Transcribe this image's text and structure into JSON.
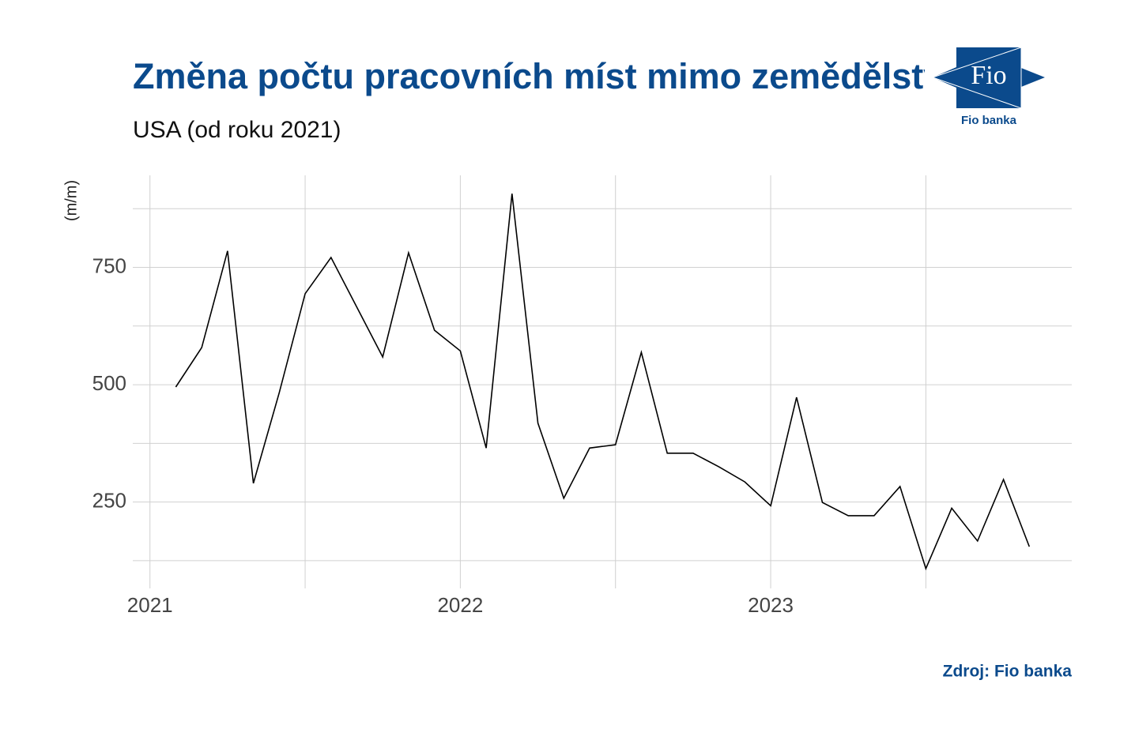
{
  "chart_data": {
    "type": "line",
    "title": "Změna počtu pracovních míst mimo zemědělství",
    "subtitle": "USA (od roku 2021)",
    "y_label": "(m/m)",
    "source": "Zdroj: Fio banka",
    "logo": {
      "mark": "Fio",
      "caption": "Fio banka"
    },
    "x": [
      "2021-02",
      "2021-03",
      "2021-04",
      "2021-05",
      "2021-06",
      "2021-07",
      "2021-08",
      "2021-09",
      "2021-10",
      "2021-11",
      "2021-12",
      "2022-01",
      "2022-02",
      "2022-03",
      "2022-04",
      "2022-05",
      "2022-06",
      "2022-07",
      "2022-08",
      "2022-09",
      "2022-10",
      "2022-11",
      "2022-12",
      "2023-01",
      "2023-02",
      "2023-03",
      "2023-04",
      "2023-05",
      "2023-06",
      "2023-07",
      "2023-08",
      "2023-09",
      "2023-10",
      "2023-11"
    ],
    "values": [
      495,
      579,
      785,
      290,
      483,
      694,
      771,
      665,
      559,
      781,
      616,
      572,
      365,
      907,
      418,
      258,
      365,
      372,
      569,
      354,
      354,
      325,
      293,
      242,
      473,
      249,
      221,
      221,
      283,
      108,
      237,
      167,
      298,
      155
    ],
    "color": "#000000",
    "xlim": [
      "2020-12",
      "2023-12"
    ],
    "xticks": [
      {
        "value": "2021-01",
        "label": "2021"
      },
      {
        "value": "2022-01",
        "label": "2022"
      },
      {
        "value": "2023-01",
        "label": "2023"
      }
    ],
    "x_minor_ticks": [
      "2021-07",
      "2022-07",
      "2023-07"
    ],
    "ylim": [
      66,
      946
    ],
    "yticks": [
      250,
      500,
      750
    ],
    "y_minor_ticks": [
      125,
      375,
      625,
      875
    ],
    "grid": true
  }
}
